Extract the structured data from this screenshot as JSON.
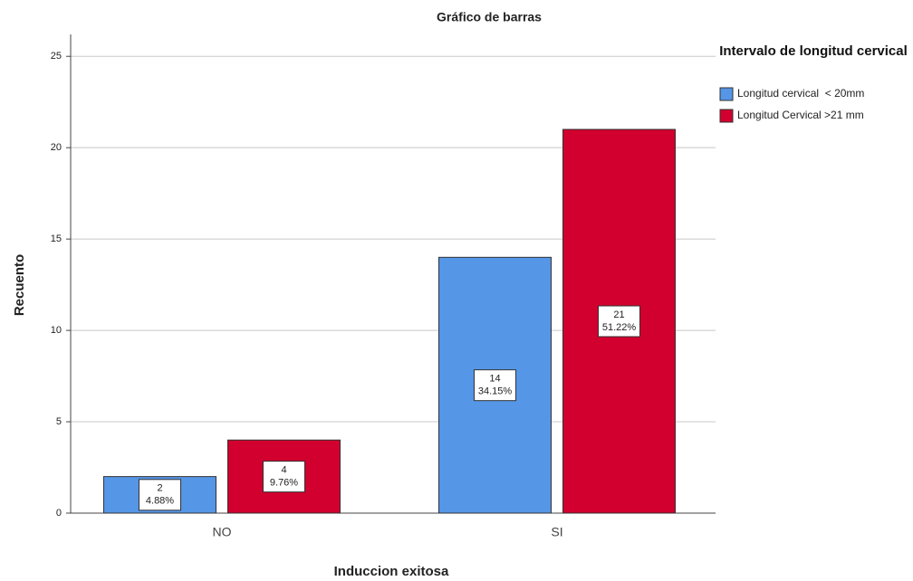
{
  "chart_data": {
    "type": "bar",
    "title": "Gráfico de barras",
    "x_label": "Induccion exitosa",
    "y_label": "Recuento",
    "legend_title": "Intervalo de longitud cervical",
    "legend": "right",
    "categories": [
      "NO",
      "SI"
    ],
    "series": [
      {
        "name": "Longitud cervical  < 20mm",
        "color": "#5596e6",
        "values": [
          2,
          14
        ],
        "percents": [
          {
            "value": 4.88,
            "label": "4.88%"
          },
          {
            "value": 34.15,
            "label": "34.15%"
          }
        ]
      },
      {
        "name": "Longitud Cervical >21 mm",
        "color": "#d2002e",
        "values": [
          4,
          21
        ],
        "percents": [
          {
            "value": 9.76,
            "label": "9.76%"
          },
          {
            "value": 51.22,
            "label": "51.22%"
          }
        ]
      }
    ],
    "ylim": [
      0,
      26.2
    ],
    "yticks": [
      0,
      5,
      10,
      15,
      20,
      25
    ],
    "grid": true
  }
}
